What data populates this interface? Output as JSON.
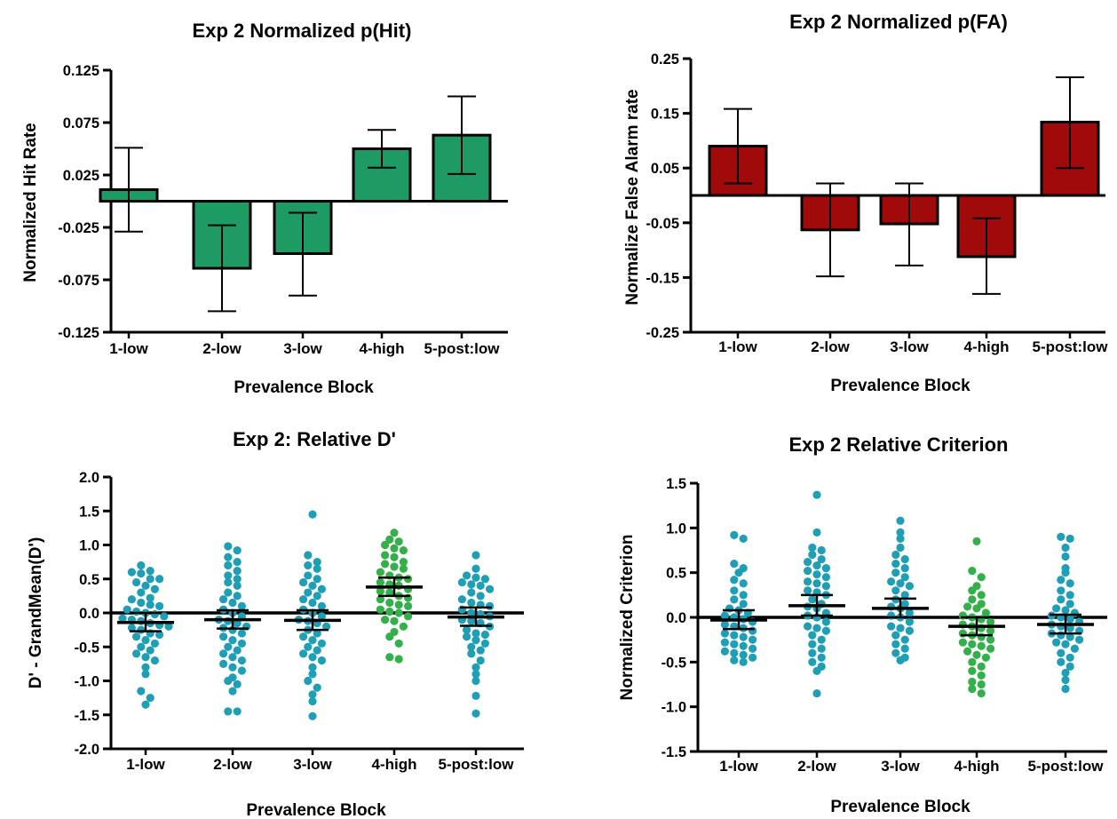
{
  "colors": {
    "hit_bar": "#1e9a64",
    "fa_bar": "#a10a0a",
    "dot_low": "#1e9fb6",
    "dot_high": "#33b04a",
    "axis": "#000000"
  },
  "chart_data": [
    {
      "id": "hit",
      "type": "bar",
      "title": "Exp 2 Normalized p(Hit)",
      "xlabel": "Prevalence Block",
      "ylabel": "Normalized Hit Rate",
      "categories": [
        "1-low",
        "2-low",
        "3-low",
        "4-high",
        "5-post:low"
      ],
      "values": [
        0.011,
        -0.064,
        -0.05,
        0.05,
        0.063
      ],
      "error_low": [
        -0.029,
        -0.105,
        -0.09,
        0.032,
        0.026
      ],
      "error_high": [
        0.051,
        -0.023,
        -0.011,
        0.068,
        0.1
      ],
      "ylim": [
        -0.125,
        0.125
      ],
      "yticks": [
        -0.125,
        -0.075,
        -0.025,
        0.025,
        0.075,
        0.125
      ],
      "ytick_labels": [
        "-0.125",
        "-0.075",
        "-0.025",
        "0.025",
        "0.075",
        "0.125"
      ],
      "bar_color": "hit_bar"
    },
    {
      "id": "fa",
      "type": "bar",
      "title": "Exp 2  Normalized p(FA)",
      "xlabel": "Prevalence Block",
      "ylabel": "Normalize False Alarm rate",
      "categories": [
        "1-low",
        "2-low",
        "3-low",
        "4-high",
        "5-post:low"
      ],
      "values": [
        0.09,
        -0.063,
        -0.052,
        -0.112,
        0.134
      ],
      "error_low": [
        0.022,
        -0.148,
        -0.128,
        -0.18,
        0.05
      ],
      "error_high": [
        0.158,
        0.022,
        0.022,
        -0.042,
        0.216
      ],
      "ylim": [
        -0.25,
        0.25
      ],
      "yticks": [
        -0.25,
        -0.15,
        -0.05,
        0.05,
        0.15,
        0.25
      ],
      "ytick_labels": [
        "-0.25",
        "-0.15",
        "-0.05",
        "0.05",
        "0.15",
        "0.25"
      ],
      "bar_color": "fa_bar"
    },
    {
      "id": "dprime",
      "type": "scatter",
      "title": "Exp 2: Relative D'",
      "xlabel": "Prevalence Block",
      "ylabel": "D' - GrandMean(D')",
      "categories": [
        "1-low",
        "2-low",
        "3-low",
        "4-high",
        "5-post:low"
      ],
      "ylim": [
        -2.0,
        2.0
      ],
      "yticks": [
        -2.0,
        -1.5,
        -1.0,
        -0.5,
        0.0,
        0.5,
        1.0,
        1.5,
        2.0
      ],
      "ytick_labels": [
        "-2.0",
        "-1.5",
        "-1.0",
        "-0.5",
        "0.0",
        "0.5",
        "1.0",
        "1.5",
        "2.0"
      ],
      "means": [
        -0.14,
        -0.1,
        -0.11,
        0.38,
        -0.06
      ],
      "sem_low": [
        -0.27,
        -0.23,
        -0.25,
        0.25,
        -0.19
      ],
      "sem_high": [
        0.0,
        0.04,
        0.04,
        0.52,
        0.08
      ],
      "series": [
        {
          "category": "1-low",
          "color": "dot_low",
          "values": [
            0.7,
            0.62,
            0.6,
            0.58,
            0.5,
            0.5,
            0.45,
            0.4,
            0.35,
            0.3,
            0.22,
            0.2,
            0.15,
            0.12,
            0.1,
            0.05,
            0.02,
            0.0,
            -0.02,
            -0.05,
            -0.08,
            -0.1,
            -0.12,
            -0.15,
            -0.18,
            -0.2,
            -0.22,
            -0.25,
            -0.3,
            -0.32,
            -0.35,
            -0.4,
            -0.45,
            -0.5,
            -0.55,
            -0.6,
            -0.65,
            -0.7,
            -0.8,
            -0.9,
            -1.15,
            -1.25,
            -1.35
          ]
        },
        {
          "category": "2-low",
          "color": "dot_low",
          "values": [
            0.98,
            0.92,
            0.82,
            0.75,
            0.7,
            0.62,
            0.55,
            0.5,
            0.45,
            0.4,
            0.3,
            0.25,
            0.2,
            0.15,
            0.1,
            0.05,
            0.0,
            -0.05,
            -0.1,
            -0.12,
            -0.15,
            -0.2,
            -0.22,
            -0.25,
            -0.3,
            -0.35,
            -0.4,
            -0.45,
            -0.5,
            -0.55,
            -0.6,
            -0.65,
            -0.7,
            -0.75,
            -0.8,
            -0.85,
            -0.95,
            -1.0,
            -1.05,
            -1.15,
            -1.45,
            -1.45
          ]
        },
        {
          "category": "3-low",
          "color": "dot_low",
          "values": [
            1.45,
            0.85,
            0.75,
            0.7,
            0.65,
            0.55,
            0.5,
            0.45,
            0.4,
            0.35,
            0.3,
            0.25,
            0.2,
            0.15,
            0.1,
            0.05,
            0.0,
            -0.05,
            -0.1,
            -0.12,
            -0.15,
            -0.2,
            -0.25,
            -0.3,
            -0.35,
            -0.4,
            -0.45,
            -0.5,
            -0.55,
            -0.6,
            -0.65,
            -0.7,
            -0.8,
            -0.9,
            -1.0,
            -1.1,
            -1.2,
            -1.3,
            -1.52
          ]
        },
        {
          "category": "4-high",
          "color": "dot_high",
          "values": [
            1.18,
            1.08,
            1.05,
            1.0,
            0.95,
            0.92,
            0.85,
            0.82,
            0.75,
            0.72,
            0.68,
            0.65,
            0.6,
            0.55,
            0.52,
            0.5,
            0.45,
            0.42,
            0.4,
            0.35,
            0.32,
            0.3,
            0.25,
            0.22,
            0.2,
            0.15,
            0.12,
            0.1,
            0.05,
            0.02,
            0.0,
            -0.05,
            -0.1,
            -0.12,
            -0.2,
            -0.28,
            -0.35,
            -0.45,
            -0.65,
            -0.68
          ]
        },
        {
          "category": "5-post:low",
          "color": "dot_low",
          "values": [
            0.85,
            0.65,
            0.55,
            0.52,
            0.5,
            0.45,
            0.42,
            0.4,
            0.35,
            0.3,
            0.25,
            0.2,
            0.15,
            0.12,
            0.1,
            0.05,
            0.0,
            -0.02,
            -0.05,
            -0.1,
            -0.12,
            -0.15,
            -0.2,
            -0.25,
            -0.3,
            -0.32,
            -0.35,
            -0.4,
            -0.45,
            -0.5,
            -0.55,
            -0.6,
            -0.7,
            -0.8,
            -0.9,
            -1.0,
            -1.22,
            -1.48
          ]
        }
      ]
    },
    {
      "id": "criterion",
      "type": "scatter",
      "title": "Exp 2  Relative Criterion",
      "xlabel": "Prevalence Block",
      "ylabel": "Normalized Criterion",
      "categories": [
        "1-low",
        "2-low",
        "3-low",
        "4-high",
        "5-post:low"
      ],
      "ylim": [
        -1.5,
        1.5
      ],
      "yticks": [
        -1.5,
        -1.0,
        -0.5,
        0.0,
        0.5,
        1.0,
        1.5
      ],
      "ytick_labels": [
        "-1.5",
        "-1.0",
        "-0.5",
        "0.0",
        "0.5",
        "1.0",
        "1.5"
      ],
      "means": [
        -0.03,
        0.13,
        0.1,
        -0.1,
        -0.08
      ],
      "sem_low": [
        -0.13,
        0.02,
        0.0,
        -0.2,
        -0.18
      ],
      "sem_high": [
        0.08,
        0.25,
        0.21,
        0.0,
        0.03
      ],
      "series": [
        {
          "category": "1-low",
          "color": "dot_low",
          "values": [
            0.92,
            0.88,
            0.6,
            0.55,
            0.5,
            0.42,
            0.38,
            0.3,
            0.25,
            0.2,
            0.15,
            0.1,
            0.08,
            0.05,
            0.02,
            0.0,
            -0.02,
            -0.05,
            -0.08,
            -0.1,
            -0.12,
            -0.15,
            -0.18,
            -0.2,
            -0.22,
            -0.25,
            -0.28,
            -0.3,
            -0.32,
            -0.35,
            -0.38,
            -0.4,
            -0.42,
            -0.45,
            -0.48,
            -0.5
          ]
        },
        {
          "category": "2-low",
          "color": "dot_low",
          "values": [
            1.37,
            0.95,
            0.78,
            0.75,
            0.7,
            0.65,
            0.62,
            0.58,
            0.55,
            0.52,
            0.48,
            0.45,
            0.4,
            0.38,
            0.35,
            0.3,
            0.28,
            0.25,
            0.2,
            0.15,
            0.12,
            0.1,
            0.05,
            0.02,
            0.0,
            -0.05,
            -0.1,
            -0.12,
            -0.15,
            -0.2,
            -0.25,
            -0.3,
            -0.35,
            -0.4,
            -0.45,
            -0.5,
            -0.55,
            -0.6,
            -0.85
          ]
        },
        {
          "category": "3-low",
          "color": "dot_low",
          "values": [
            1.08,
            0.95,
            0.88,
            0.78,
            0.7,
            0.65,
            0.6,
            0.55,
            0.5,
            0.45,
            0.4,
            0.38,
            0.35,
            0.3,
            0.25,
            0.2,
            0.15,
            0.12,
            0.1,
            0.05,
            0.02,
            0.0,
            -0.05,
            -0.1,
            -0.12,
            -0.15,
            -0.2,
            -0.25,
            -0.3,
            -0.35,
            -0.4,
            -0.45,
            -0.48
          ]
        },
        {
          "category": "4-high",
          "color": "dot_high",
          "values": [
            0.85,
            0.52,
            0.45,
            0.35,
            0.3,
            0.25,
            0.2,
            0.15,
            0.12,
            0.1,
            0.05,
            0.02,
            0.0,
            -0.02,
            -0.05,
            -0.08,
            -0.1,
            -0.12,
            -0.15,
            -0.18,
            -0.2,
            -0.22,
            -0.25,
            -0.28,
            -0.3,
            -0.32,
            -0.35,
            -0.38,
            -0.42,
            -0.45,
            -0.5,
            -0.55,
            -0.6,
            -0.65,
            -0.72,
            -0.75,
            -0.8,
            -0.85
          ]
        },
        {
          "category": "5-post:low",
          "color": "dot_low",
          "values": [
            0.9,
            0.88,
            0.78,
            0.68,
            0.55,
            0.5,
            0.42,
            0.38,
            0.3,
            0.25,
            0.2,
            0.15,
            0.1,
            0.08,
            0.05,
            0.02,
            0.0,
            -0.02,
            -0.05,
            -0.08,
            -0.1,
            -0.12,
            -0.15,
            -0.18,
            -0.2,
            -0.22,
            -0.25,
            -0.28,
            -0.3,
            -0.35,
            -0.4,
            -0.45,
            -0.5,
            -0.55,
            -0.62,
            -0.7,
            -0.8
          ]
        }
      ]
    }
  ]
}
